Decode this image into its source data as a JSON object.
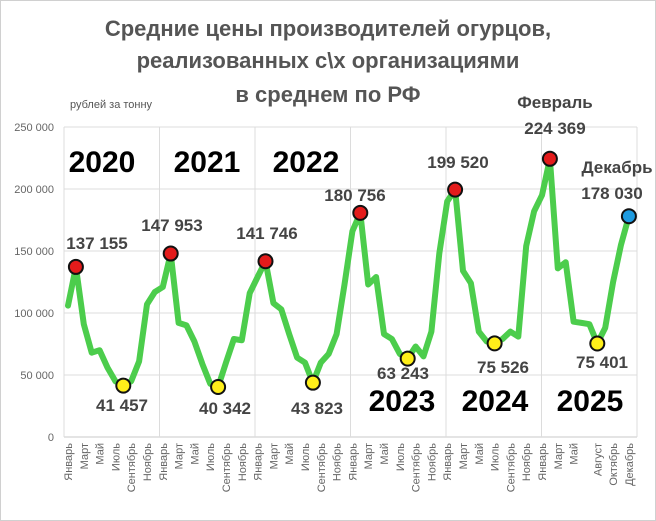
{
  "chart_data": {
    "type": "line",
    "title": [
      "Средние цены производителей огурцов,",
      "реализованных с\\х организациями",
      "в среднем по РФ"
    ],
    "ylabel": "рублей за тонну",
    "xlabel": "",
    "ylim": [
      0,
      250000
    ],
    "yticks": [
      "0",
      "50 000",
      "100 000",
      "150 000",
      "200 000",
      "250 000"
    ],
    "grid": true,
    "line_color": "#4ccd4c",
    "years": [
      "2020",
      "2021",
      "2022",
      "2023",
      "2024",
      "2025"
    ],
    "xtick_labels": [
      {
        "year": "2020",
        "labels": [
          [
            0,
            "Январь"
          ],
          [
            2,
            "Март"
          ],
          [
            4,
            "Май"
          ],
          [
            6,
            "Июль"
          ],
          [
            8,
            "Сентябрь"
          ],
          [
            10,
            "Ноябрь"
          ]
        ]
      },
      {
        "year": "2021",
        "labels": [
          [
            0,
            "Январь"
          ],
          [
            2,
            "Март"
          ],
          [
            4,
            "Май"
          ],
          [
            6,
            "Июль"
          ],
          [
            8,
            "Сентябрь"
          ],
          [
            10,
            "Ноябрь"
          ]
        ]
      },
      {
        "year": "2022",
        "labels": [
          [
            0,
            "Январь"
          ],
          [
            2,
            "Март"
          ],
          [
            4,
            "Май"
          ],
          [
            6,
            "Июль"
          ],
          [
            8,
            "Сентябрь"
          ],
          [
            10,
            "Ноябрь"
          ]
        ]
      },
      {
        "year": "2023",
        "labels": [
          [
            0,
            "Январь"
          ],
          [
            2,
            "Март"
          ],
          [
            4,
            "Май"
          ],
          [
            6,
            "Июль"
          ],
          [
            8,
            "Сентябрь"
          ],
          [
            10,
            "Ноябрь"
          ]
        ]
      },
      {
        "year": "2024",
        "labels": [
          [
            0,
            "Январь"
          ],
          [
            2,
            "Март"
          ],
          [
            4,
            "Май"
          ],
          [
            6,
            "Июль"
          ],
          [
            8,
            "Сентябрь"
          ],
          [
            10,
            "Ноябрь"
          ]
        ]
      },
      {
        "year": "2025",
        "labels": [
          [
            0,
            "Январь"
          ],
          [
            2,
            "Март"
          ],
          [
            4,
            "Май"
          ],
          [
            7,
            "Август"
          ],
          [
            9,
            "Октябрь"
          ],
          [
            11,
            "Декабрь"
          ]
        ]
      }
    ],
    "values": [
      106000,
      137155,
      91000,
      68000,
      70000,
      56000,
      45000,
      41457,
      45000,
      61000,
      107000,
      117000,
      121000,
      147953,
      92000,
      90000,
      77000,
      59000,
      43000,
      40342,
      60000,
      79000,
      78000,
      116000,
      129000,
      141746,
      108000,
      103000,
      83000,
      64000,
      60000,
      43823,
      60000,
      67000,
      83000,
      123000,
      166000,
      180756,
      123000,
      129000,
      83000,
      79000,
      67000,
      63243,
      73000,
      65000,
      85000,
      148000,
      190000,
      199520,
      134000,
      124000,
      85000,
      77000,
      75526,
      79000,
      85000,
      81000,
      154000,
      182000,
      195000,
      224369,
      136000,
      141000,
      93000,
      92000,
      91000,
      75401,
      88000,
      125000,
      155000,
      178030
    ],
    "markers": [
      {
        "index": 1,
        "label": "137 155",
        "type": "max",
        "color": "#e31b1b"
      },
      {
        "index": 7,
        "label": "41 457",
        "type": "min",
        "color": "#ffef1a"
      },
      {
        "index": 13,
        "label": "147 953",
        "type": "max",
        "color": "#e31b1b"
      },
      {
        "index": 19,
        "label": "40 342",
        "type": "min",
        "color": "#ffef1a"
      },
      {
        "index": 25,
        "label": "141 746",
        "type": "max",
        "color": "#e31b1b"
      },
      {
        "index": 31,
        "label": "43 823",
        "type": "min",
        "color": "#ffef1a"
      },
      {
        "index": 37,
        "label": "180 756",
        "type": "max",
        "color": "#e31b1b"
      },
      {
        "index": 43,
        "label": "63 243",
        "type": "min",
        "color": "#ffef1a"
      },
      {
        "index": 49,
        "label": "199 520",
        "type": "max",
        "color": "#e31b1b"
      },
      {
        "index": 54,
        "label": "75 526",
        "type": "min",
        "color": "#ffef1a"
      },
      {
        "index": 61,
        "label": "224 369",
        "type": "max",
        "color": "#e31b1b",
        "note": "Февраль"
      },
      {
        "index": 67,
        "label": "75 401",
        "type": "min",
        "color": "#ffef1a"
      },
      {
        "index": 71,
        "label": "178 030",
        "type": "last",
        "color": "#1e9be0",
        "note": "Декабрь"
      }
    ]
  }
}
